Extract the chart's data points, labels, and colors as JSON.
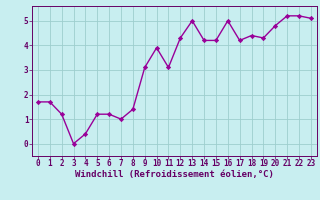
{
  "x": [
    0,
    1,
    2,
    3,
    4,
    5,
    6,
    7,
    8,
    9,
    10,
    11,
    12,
    13,
    14,
    15,
    16,
    17,
    18,
    19,
    20,
    21,
    22,
    23
  ],
  "y": [
    1.7,
    1.7,
    1.2,
    0.0,
    0.4,
    1.2,
    1.2,
    1.0,
    1.4,
    3.1,
    3.9,
    3.1,
    4.3,
    5.0,
    4.2,
    4.2,
    5.0,
    4.2,
    4.4,
    4.3,
    4.8,
    5.2,
    5.2,
    5.1
  ],
  "line_color": "#990099",
  "marker": "D",
  "marker_size": 2.2,
  "line_width": 1.0,
  "bg_color": "#c8eef0",
  "grid_color": "#9ecece",
  "xlabel": "Windchill (Refroidissement éolien,°C)",
  "xlabel_color": "#660066",
  "xlabel_fontsize": 6.5,
  "tick_color": "#660066",
  "tick_fontsize": 5.5,
  "ylim": [
    -0.5,
    5.6
  ],
  "xlim": [
    -0.5,
    23.5
  ],
  "yticks": [
    0,
    1,
    2,
    3,
    4,
    5
  ],
  "xticks": [
    0,
    1,
    2,
    3,
    4,
    5,
    6,
    7,
    8,
    9,
    10,
    11,
    12,
    13,
    14,
    15,
    16,
    17,
    18,
    19,
    20,
    21,
    22,
    23
  ]
}
